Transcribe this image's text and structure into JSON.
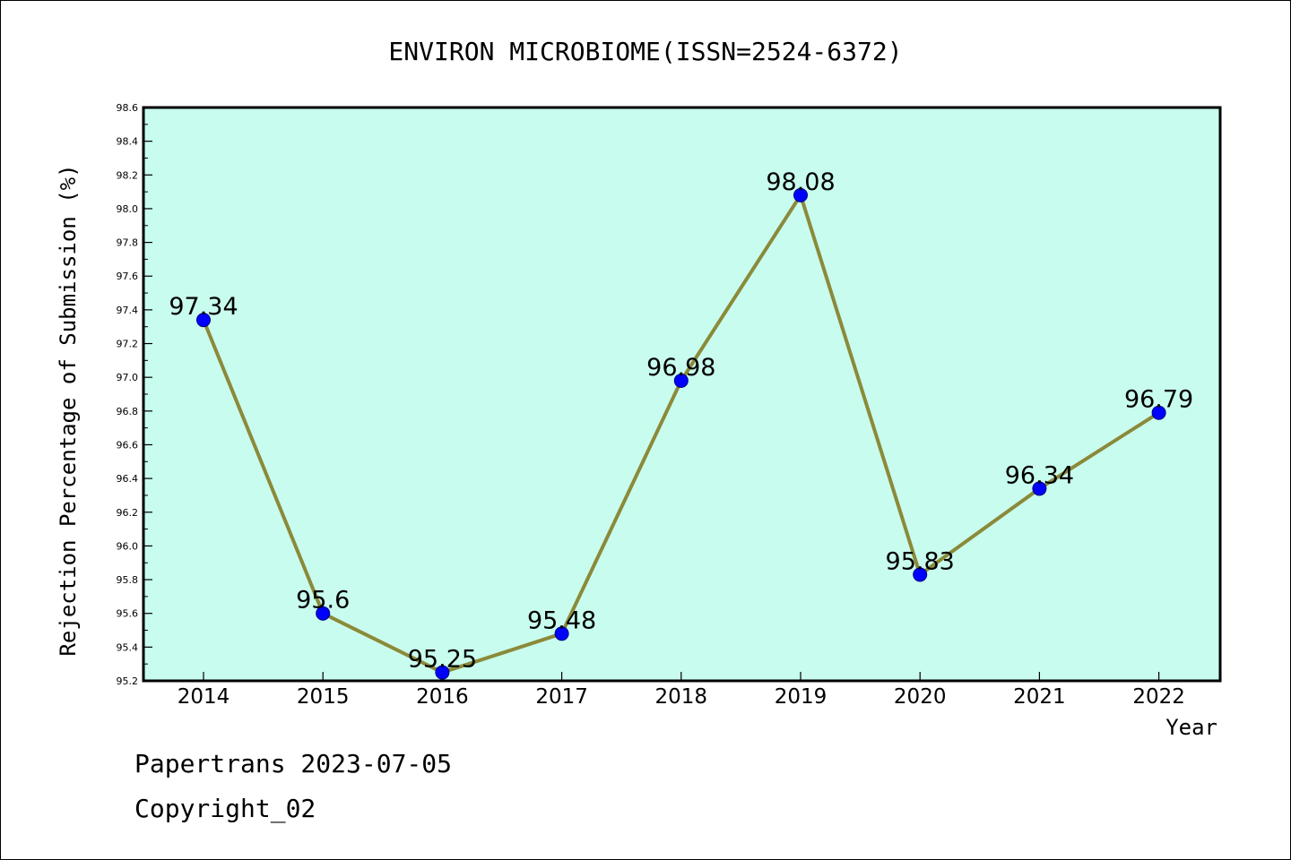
{
  "chart_data": {
    "type": "line",
    "title": "ENVIRON MICROBIOME(ISSN=2524-6372)",
    "xlabel": "Year",
    "ylabel": "Rejection Percentage of Submission (%)",
    "categories": [
      "2014",
      "2015",
      "2016",
      "2017",
      "2018",
      "2019",
      "2020",
      "2021",
      "2022"
    ],
    "values": [
      97.34,
      95.6,
      95.25,
      95.48,
      96.98,
      98.08,
      95.83,
      96.34,
      96.79
    ],
    "data_labels": [
      "97.34",
      "95.6",
      "95.25",
      "95.48",
      "96.98",
      "98.08",
      "95.83",
      "96.34",
      "96.79"
    ],
    "ylim": [
      95.2,
      98.6
    ],
    "yticks": [
      "95.2",
      "95.4",
      "95.6",
      "95.8",
      "96.0",
      "96.2",
      "96.4",
      "96.6",
      "96.8",
      "97.0",
      "97.2",
      "97.4",
      "97.6",
      "97.8",
      "98.0",
      "98.2",
      "98.4",
      "98.6"
    ],
    "grid": false,
    "colors": {
      "plot_background": "#c8fcee",
      "line": "#8b8a3a",
      "marker": "#0000ff"
    }
  },
  "footer": {
    "line1": "Papertrans 2023-07-05",
    "line2": "Copyright_02"
  }
}
